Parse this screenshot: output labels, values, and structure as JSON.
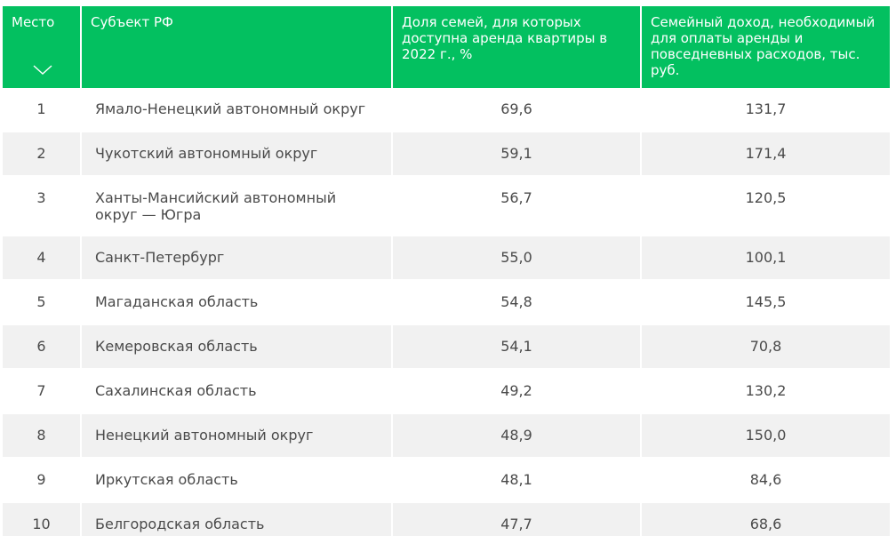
{
  "table": {
    "headers": {
      "place": "Место",
      "region": "Субъект РФ",
      "share": "Доля семей, для которых доступна аренда квартиры в 2022 г., %",
      "income": "Семейный доход, необходимый для оплаты аренды и повседневных расходов, тыс. руб."
    },
    "sort_icon": "chevron-down-icon",
    "header_color": "#03c060",
    "stripe_color": "#f1f1f1",
    "rows": [
      {
        "place": "1",
        "region": "Ямало-Ненецкий автономный округ",
        "share": "69,6",
        "income": "131,7"
      },
      {
        "place": "2",
        "region": "Чукотский автономный округ",
        "share": "59,1",
        "income": "171,4"
      },
      {
        "place": "3",
        "region": "Ханты-Мансийский автономный округ — Югра",
        "share": "56,7",
        "income": "120,5"
      },
      {
        "place": "4",
        "region": "Санкт-Петербург",
        "share": "55,0",
        "income": "100,1"
      },
      {
        "place": "5",
        "region": "Магаданская область",
        "share": "54,8",
        "income": "145,5"
      },
      {
        "place": "6",
        "region": "Кемеровская область",
        "share": "54,1",
        "income": "70,8"
      },
      {
        "place": "7",
        "region": "Сахалинская область",
        "share": "49,2",
        "income": "130,2"
      },
      {
        "place": "8",
        "region": "Ненецкий автономный округ",
        "share": "48,9",
        "income": "150,0"
      },
      {
        "place": "9",
        "region": "Иркутская область",
        "share": "48,1",
        "income": "84,6"
      },
      {
        "place": "10",
        "region": "Белгородская область",
        "share": "47,7",
        "income": "68,6"
      }
    ]
  }
}
